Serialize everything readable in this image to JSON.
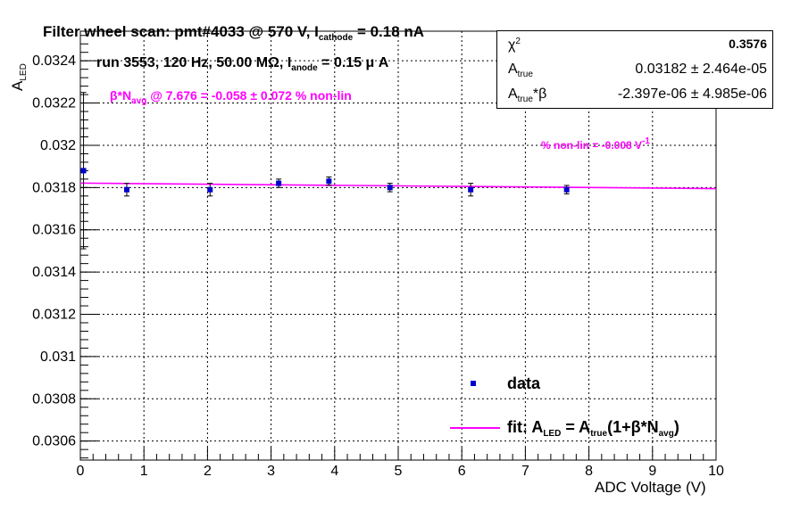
{
  "chart_data": {
    "type": "scatter",
    "title": "Filter wheel scan: pmt#4033 @   570 V, I",
    "title_sub": "cathode",
    "title_tail": " = 0.18 nA",
    "run_info": "run 3553, 120 Hz, 50.00 MΩ, I",
    "run_sub": "anode",
    "run_tail": " = 0.15 μ A",
    "beta_pre": "β*N",
    "beta_sub": "avg",
    "beta_tail": " @ 7.676 = -0.058 ± 0.072 % non-lin",
    "nonlin_text": "% non-lin = -0.008 V",
    "nonlin_sup": "-1",
    "xlabel": "ADC Voltage (V)",
    "ylabel_main": "A",
    "ylabel_sub": "LED",
    "xlim": [
      0,
      10
    ],
    "ylim": [
      0.03051,
      0.03254
    ],
    "x_ticks": [
      0,
      1,
      2,
      3,
      4,
      5,
      6,
      7,
      8,
      9,
      10
    ],
    "x_tick_labels": [
      "0",
      "1",
      "2",
      "3",
      "4",
      "5",
      "6",
      "7",
      "8",
      "9",
      "10"
    ],
    "y_ticks": [
      0.0306,
      0.0308,
      0.031,
      0.0312,
      0.0314,
      0.0316,
      0.0318,
      0.032,
      0.0322,
      0.0324
    ],
    "y_tick_labels": [
      "0.0306",
      "0.0308",
      "0.031",
      "0.0312",
      "0.0314",
      "0.0316",
      "0.0318",
      "0.032",
      "0.0322",
      "0.0324"
    ],
    "grid": true,
    "series": [
      {
        "name": "data",
        "color": "#0000cc",
        "points": [
          {
            "x": 0.05,
            "y": 0.03188,
            "err": 0.00037
          },
          {
            "x": 0.73,
            "y": 0.03179,
            "err": 3e-05
          },
          {
            "x": 2.04,
            "y": 0.03179,
            "err": 3e-05
          },
          {
            "x": 3.12,
            "y": 0.03182,
            "err": 2e-05
          },
          {
            "x": 3.91,
            "y": 0.03183,
            "err": 2e-05
          },
          {
            "x": 4.87,
            "y": 0.0318,
            "err": 2e-05
          },
          {
            "x": 6.14,
            "y": 0.03179,
            "err": 3e-05
          },
          {
            "x": 7.65,
            "y": 0.03179,
            "err": 2e-05
          }
        ]
      },
      {
        "name": "fit",
        "color": "#ff00ff",
        "type": "line",
        "x": [
          0.0,
          10.0
        ],
        "y": [
          0.031821,
          0.031795
        ]
      }
    ],
    "stats": {
      "chi2_label": "χ",
      "chi2_sup": "2",
      "chi2_value": "0.3576",
      "a_true_label": "A",
      "a_true_sub": "true",
      "a_true_value": "0.03182 ± 2.464e-05",
      "a_beta_label": "A",
      "a_beta_sub": "true",
      "a_beta_tail": "*β",
      "a_beta_value": "-2.397e-06 ± 4.985e-06"
    },
    "legend": {
      "data_label": "data",
      "fit_label": "fit: A",
      "fit_sub1": "LED",
      "fit_mid": " = A",
      "fit_sub2": "true",
      "fit_mid2": "(1+β*N",
      "fit_sub3": "avg",
      "fit_tail": ")"
    }
  }
}
